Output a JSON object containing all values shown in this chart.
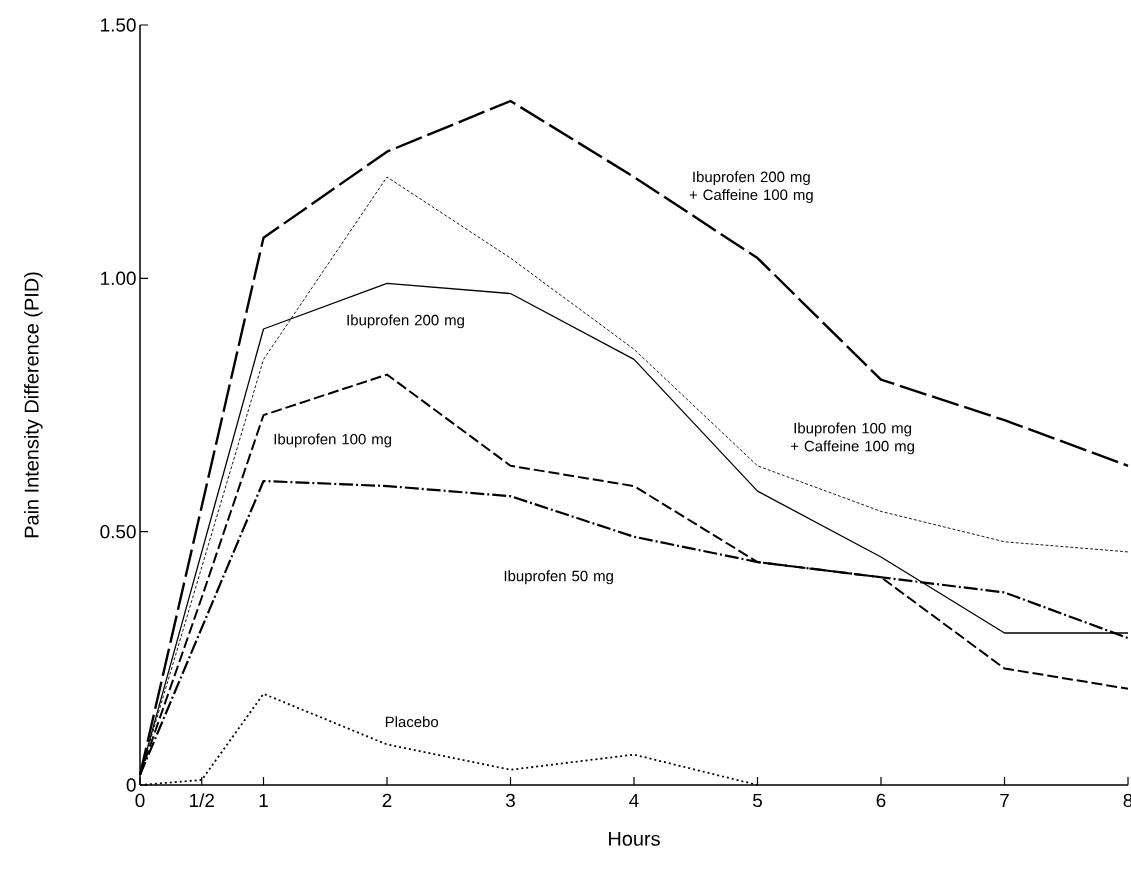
{
  "chart_data": {
    "type": "line",
    "xlabel": "Hours",
    "ylabel": "Pain Intensity Difference (PID)",
    "x": [
      0,
      0.5,
      1,
      2,
      3,
      4,
      5,
      6,
      7,
      8
    ],
    "xlim": [
      0,
      8
    ],
    "ylim": [
      0,
      1.5
    ],
    "xticks": [
      0,
      {
        "value": 0.5,
        "label": "1/2"
      },
      1,
      2,
      3,
      4,
      5,
      6,
      7,
      8
    ],
    "yticks": [
      0,
      {
        "value": 0.5,
        "label": "0.50"
      },
      {
        "value": 1,
        "label": "1.00"
      },
      {
        "value": 1.5,
        "label": "1.50"
      }
    ],
    "grid": false,
    "legend": false,
    "marker": "none",
    "series": [
      {
        "name": "Ibuprofen 200 mg + Caffeine 100 mg",
        "color": "#000000",
        "line_style": "dashed",
        "values": [
          0.02,
          0.55,
          1.08,
          1.25,
          1.35,
          1.2,
          1.04,
          0.8,
          0.72,
          0.63
        ]
      },
      {
        "name": "Ibuprofen 100 mg + Caffeine 100 mg",
        "color": "#000000",
        "line_style": "dashed",
        "values": [
          0.02,
          0.43,
          0.84,
          1.2,
          1.04,
          0.86,
          0.63,
          0.54,
          0.48,
          0.46
        ]
      },
      {
        "name": "Ibuprofen 200 mg",
        "color": "#000000",
        "line_style": "solid",
        "values": [
          0.02,
          0.46,
          0.9,
          0.99,
          0.97,
          0.84,
          0.58,
          0.45,
          0.3,
          0.3
        ]
      },
      {
        "name": "Ibuprofen 100 mg",
        "color": "#000000",
        "line_style": "dashed",
        "values": [
          0.02,
          0.37,
          0.73,
          0.81,
          0.63,
          0.59,
          0.44,
          0.41,
          0.23,
          0.19
        ]
      },
      {
        "name": "Ibuprofen 50 mg",
        "color": "#000000",
        "line_style": "dashed",
        "values": [
          0.02,
          0.31,
          0.6,
          0.59,
          0.57,
          0.49,
          0.44,
          0.41,
          0.38,
          0.29
        ]
      },
      {
        "name": "Placebo",
        "color": "#000000",
        "line_style": "dotted",
        "values": [
          0,
          0.01,
          0.18,
          0.08,
          0.03,
          0.06,
          0,
          null,
          null,
          null
        ]
      }
    ]
  }
}
